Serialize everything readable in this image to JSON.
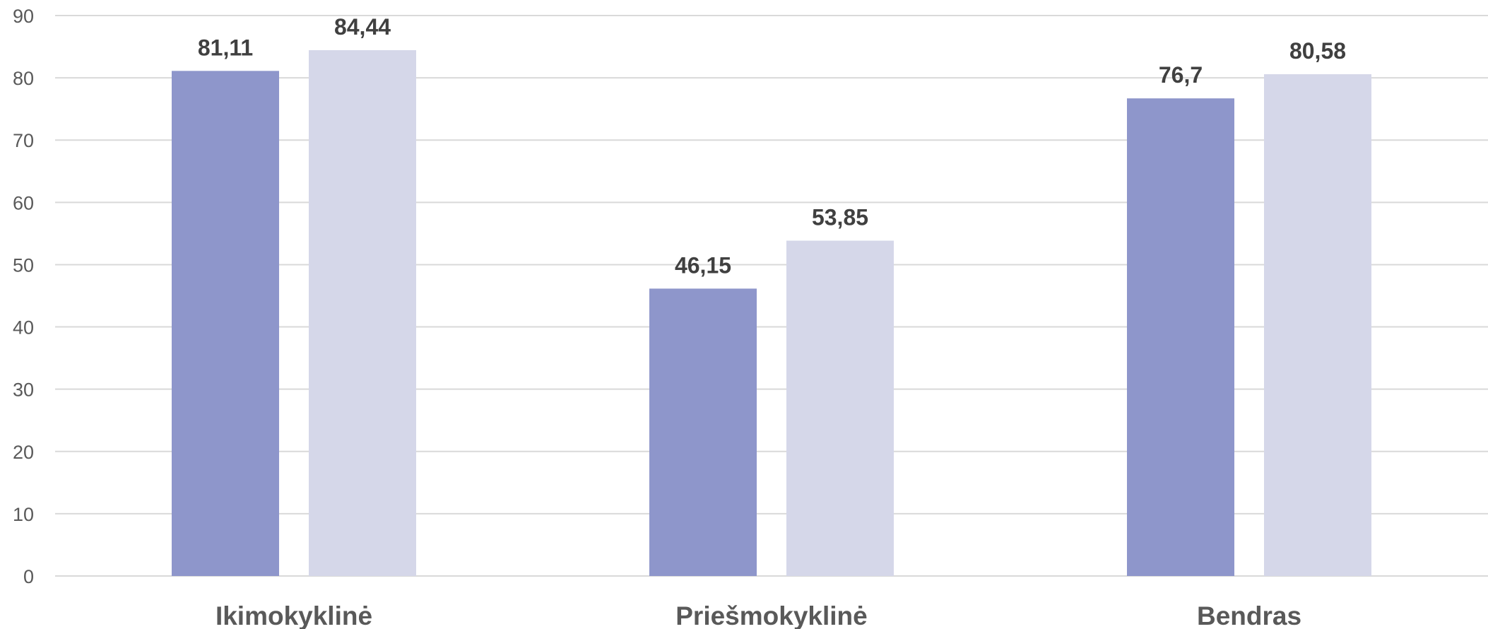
{
  "chart_data": {
    "type": "bar",
    "title": "",
    "xlabel": "",
    "ylabel": "",
    "categories": [
      "Ikimokyklinė",
      "Priešmokyklinė",
      "Bendras"
    ],
    "series": [
      {
        "values": [
          81.11,
          46.15,
          76.7
        ],
        "labels": [
          "81,11",
          "46,15",
          "76,7"
        ],
        "color": "#8e96cb"
      },
      {
        "values": [
          84.44,
          53.85,
          80.58
        ],
        "labels": [
          "84,44",
          "53,85",
          "80,58"
        ],
        "color": "#d5d7e9"
      }
    ],
    "ylim": [
      0,
      90
    ],
    "yticks": [
      0,
      10,
      20,
      30,
      40,
      50,
      60,
      70,
      80,
      90
    ],
    "grid": true,
    "legend": "none"
  }
}
